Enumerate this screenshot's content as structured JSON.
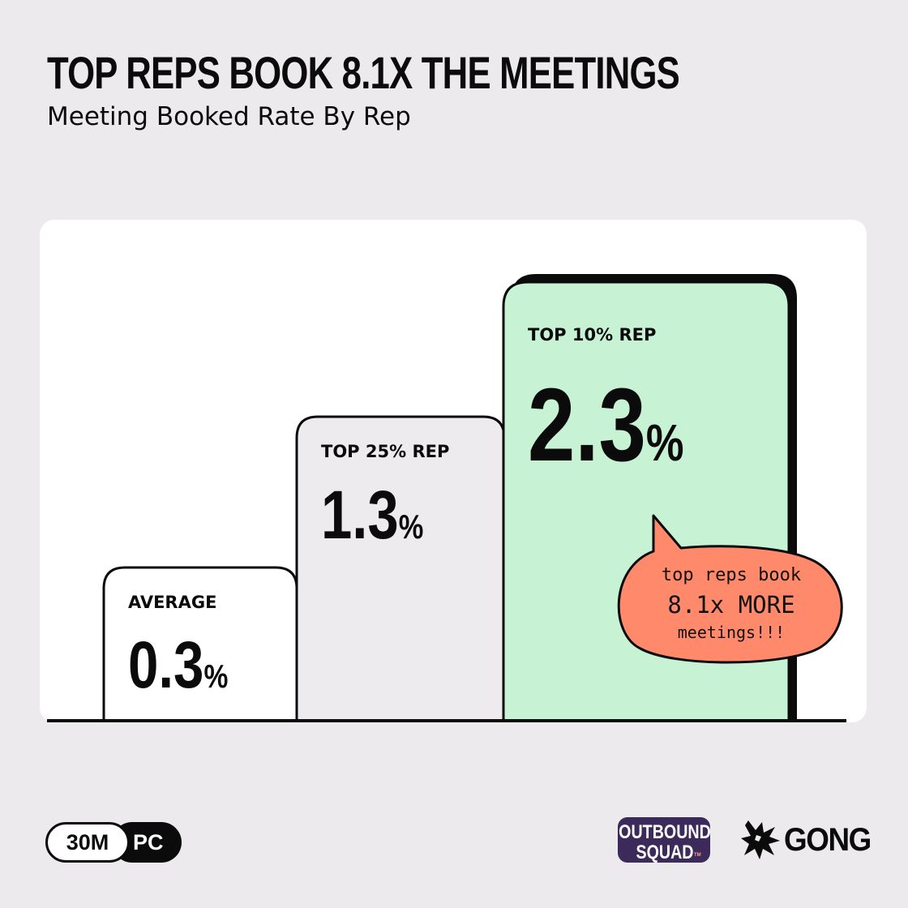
{
  "header": {
    "title": "TOP REPS BOOK 8.1X THE MEETINGS",
    "subtitle": "Meeting Booked Rate By Rep"
  },
  "chart_data": {
    "type": "bar",
    "categories": [
      "AVERAGE",
      "TOP 25% REP",
      "TOP 10% REP"
    ],
    "values": [
      0.3,
      1.3,
      2.3
    ],
    "value_labels": [
      "0.3",
      "1.3",
      "2.3"
    ],
    "unit": "%",
    "colors": [
      "#FFFFFF",
      "#EDEBEE",
      "#C7F2D4"
    ],
    "title": "TOP REPS BOOK 8.1X THE MEETINGS",
    "subtitle": "Meeting Booked Rate By Rep",
    "annotation": [
      "top reps book",
      "8.1x MORE",
      "meetings!!!"
    ],
    "annotation_color": "#FF8A6B",
    "grid": false
  },
  "footer": {
    "badge_left": "30M",
    "badge_right": "PC",
    "logo_outbound_line1": "OUTBOUND",
    "logo_outbound_line2": "SQUAD",
    "logo_outbound_tm": "TM",
    "logo_gong": "GONG"
  }
}
